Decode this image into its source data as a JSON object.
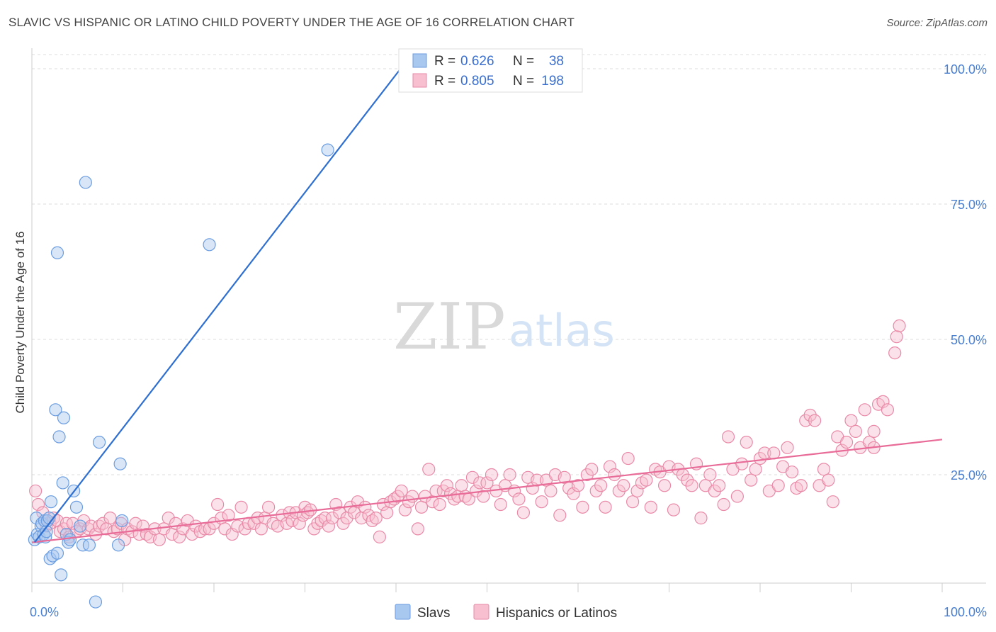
{
  "title": "SLAVIC VS HISPANIC OR LATINO CHILD POVERTY UNDER THE AGE OF 16 CORRELATION CHART",
  "source": "Source: ZipAtlas.com",
  "watermark": {
    "zip": "ZIP",
    "atlas": "atlas"
  },
  "legend": {
    "r_label": "R =",
    "n_label": "N =",
    "entries": [
      {
        "r": "0.626",
        "n": "38",
        "color": "#a9c8f0",
        "stroke": "#6b9de0"
      },
      {
        "r": "0.805",
        "n": "198",
        "color": "#f7bfd0",
        "stroke": "#e98aa8"
      }
    ]
  },
  "colors": {
    "slavs": "#a9c8f0",
    "slavs_stroke": "#6b9de0",
    "slavs_line": "#2f6fd0",
    "hisp": "#f7bfd0",
    "hisp_stroke": "#e98aa8",
    "hisp_line": "#e86b98",
    "tick": "#4a7fcf",
    "grid": "#dddddd"
  },
  "chart_data": {
    "type": "scatter",
    "title": "SLAVIC VS HISPANIC OR LATINO CHILD POVERTY UNDER THE AGE OF 16 CORRELATION CHART",
    "xlabel": "",
    "ylabel": "Child Poverty Under the Age of 16",
    "xlim": [
      0,
      100
    ],
    "ylim": [
      0,
      102
    ],
    "x_ticks": [
      "0.0%",
      "100.0%"
    ],
    "y_ticks": [
      {
        "v": 25,
        "label": "25.0%"
      },
      {
        "v": 50,
        "label": "50.0%"
      },
      {
        "v": 75,
        "label": "75.0%"
      },
      {
        "v": 100,
        "label": "100.0%"
      }
    ],
    "grid": "horizontal dashed",
    "legend_placement": "top-center",
    "series": [
      {
        "name": "Slavs",
        "r": 0.626,
        "n": 38,
        "trend": {
          "x": [
            0.3,
            40.5
          ],
          "y": [
            12.5,
            100
          ]
        },
        "points": [
          [
            0.3,
            13
          ],
          [
            0.5,
            17
          ],
          [
            0.6,
            14
          ],
          [
            0.8,
            13.5
          ],
          [
            1.0,
            15.5
          ],
          [
            1.1,
            16
          ],
          [
            1.3,
            14
          ],
          [
            1.4,
            16.5
          ],
          [
            1.5,
            13.5
          ],
          [
            1.6,
            14.5
          ],
          [
            1.7,
            16.5
          ],
          [
            1.9,
            17
          ],
          [
            2.0,
            9.5
          ],
          [
            2.1,
            20
          ],
          [
            2.3,
            10
          ],
          [
            2.6,
            37
          ],
          [
            2.8,
            10.5
          ],
          [
            3.0,
            32
          ],
          [
            3.2,
            6.5
          ],
          [
            3.4,
            23.5
          ],
          [
            3.5,
            35.5
          ],
          [
            3.8,
            14
          ],
          [
            4.0,
            12.5
          ],
          [
            4.2,
            13
          ],
          [
            4.6,
            22
          ],
          [
            4.9,
            19
          ],
          [
            5.3,
            15.5
          ],
          [
            5.6,
            12
          ],
          [
            5.9,
            79
          ],
          [
            6.3,
            12
          ],
          [
            7.0,
            1.5
          ],
          [
            7.4,
            31
          ],
          [
            9.5,
            12
          ],
          [
            9.7,
            27
          ],
          [
            9.9,
            16.5
          ],
          [
            19.5,
            67.5
          ],
          [
            2.8,
            66
          ],
          [
            32.5,
            85
          ]
        ]
      },
      {
        "name": "Hispanics or Latinos",
        "r": 0.805,
        "n": 198,
        "trend": {
          "x": [
            0,
            100
          ],
          "y": [
            12.5,
            31.5
          ]
        },
        "points": [
          [
            0.4,
            22
          ],
          [
            0.7,
            19.5
          ],
          [
            1.2,
            18
          ],
          [
            1.6,
            15.5
          ],
          [
            2.0,
            16
          ],
          [
            2.4,
            17
          ],
          [
            2.8,
            16.5
          ],
          [
            3.1,
            14.5
          ],
          [
            3.5,
            15
          ],
          [
            3.8,
            16
          ],
          [
            4.1,
            13.5
          ],
          [
            4.5,
            16
          ],
          [
            4.9,
            14.5
          ],
          [
            5.3,
            15
          ],
          [
            5.7,
            16.5
          ],
          [
            6.2,
            15
          ],
          [
            6.5,
            15.5
          ],
          [
            7.0,
            14
          ],
          [
            7.4,
            15.5
          ],
          [
            7.8,
            16
          ],
          [
            8.2,
            15
          ],
          [
            8.6,
            17
          ],
          [
            9.0,
            14.5
          ],
          [
            9.4,
            15
          ],
          [
            9.8,
            16
          ],
          [
            10.2,
            13
          ],
          [
            10.5,
            15
          ],
          [
            11,
            14.5
          ],
          [
            11.4,
            16
          ],
          [
            11.8,
            14
          ],
          [
            12.2,
            15.5
          ],
          [
            12.6,
            14
          ],
          [
            13,
            13.5
          ],
          [
            13.5,
            15
          ],
          [
            14,
            13
          ],
          [
            14.5,
            15
          ],
          [
            15,
            17
          ],
          [
            15.4,
            14
          ],
          [
            15.8,
            16
          ],
          [
            16.2,
            13.5
          ],
          [
            16.6,
            15
          ],
          [
            17.1,
            16.5
          ],
          [
            17.6,
            14
          ],
          [
            18,
            15.5
          ],
          [
            18.5,
            14.5
          ],
          [
            19,
            15
          ],
          [
            19.5,
            15
          ],
          [
            20,
            16
          ],
          [
            20.4,
            19.5
          ],
          [
            20.8,
            17
          ],
          [
            21.2,
            15
          ],
          [
            21.6,
            17.5
          ],
          [
            22,
            14
          ],
          [
            22.6,
            15.5
          ],
          [
            23,
            19
          ],
          [
            23.4,
            15
          ],
          [
            23.8,
            16
          ],
          [
            24.4,
            16
          ],
          [
            24.8,
            17
          ],
          [
            25.2,
            15
          ],
          [
            25.6,
            17
          ],
          [
            26,
            19
          ],
          [
            26.5,
            16
          ],
          [
            27,
            15.5
          ],
          [
            27.5,
            17.5
          ],
          [
            28,
            16
          ],
          [
            28.3,
            18
          ],
          [
            28.6,
            16.5
          ],
          [
            29,
            18
          ],
          [
            29.4,
            16
          ],
          [
            29.8,
            17.5
          ],
          [
            30,
            19
          ],
          [
            30.3,
            18
          ],
          [
            30.6,
            18.5
          ],
          [
            31,
            15
          ],
          [
            31.4,
            16
          ],
          [
            31.8,
            16.5
          ],
          [
            32.2,
            17
          ],
          [
            32.6,
            15.5
          ],
          [
            33,
            17
          ],
          [
            33.4,
            19.5
          ],
          [
            33.8,
            18
          ],
          [
            34.2,
            16
          ],
          [
            34.6,
            17
          ],
          [
            35,
            19
          ],
          [
            35.4,
            18
          ],
          [
            35.8,
            20
          ],
          [
            36.2,
            17
          ],
          [
            36.6,
            19
          ],
          [
            37,
            17.5
          ],
          [
            37.4,
            16.5
          ],
          [
            37.8,
            17
          ],
          [
            38.2,
            13.5
          ],
          [
            38.6,
            19.5
          ],
          [
            39,
            18
          ],
          [
            39.4,
            20
          ],
          [
            39.8,
            20.5
          ],
          [
            40.2,
            21
          ],
          [
            40.6,
            22
          ],
          [
            41,
            18.5
          ],
          [
            41.4,
            20
          ],
          [
            41.8,
            21
          ],
          [
            42.4,
            15
          ],
          [
            42.8,
            19
          ],
          [
            43.2,
            21
          ],
          [
            43.6,
            26
          ],
          [
            44,
            20
          ],
          [
            44.4,
            22
          ],
          [
            44.8,
            19.5
          ],
          [
            45.2,
            22
          ],
          [
            45.6,
            23
          ],
          [
            46,
            21.5
          ],
          [
            46.4,
            20.5
          ],
          [
            46.8,
            21
          ],
          [
            47.2,
            23
          ],
          [
            47.6,
            21
          ],
          [
            48,
            20.5
          ],
          [
            48.4,
            24.5
          ],
          [
            48.8,
            22
          ],
          [
            49.2,
            23.5
          ],
          [
            49.6,
            21
          ],
          [
            50,
            23.5
          ],
          [
            50.5,
            25
          ],
          [
            51,
            22
          ],
          [
            51.5,
            19.5
          ],
          [
            52,
            23
          ],
          [
            52.5,
            25
          ],
          [
            53,
            22
          ],
          [
            53.5,
            20.5
          ],
          [
            54,
            18
          ],
          [
            54.5,
            24.5
          ],
          [
            55,
            22.5
          ],
          [
            55.5,
            24
          ],
          [
            56,
            20
          ],
          [
            56.5,
            24
          ],
          [
            57,
            22
          ],
          [
            57.5,
            25
          ],
          [
            58,
            17.5
          ],
          [
            58.5,
            24.5
          ],
          [
            59,
            22.5
          ],
          [
            59.5,
            21.5
          ],
          [
            60,
            23
          ],
          [
            60.5,
            19
          ],
          [
            61,
            25
          ],
          [
            61.5,
            26
          ],
          [
            62,
            22
          ],
          [
            62.5,
            23
          ],
          [
            63,
            19
          ],
          [
            63.5,
            26.5
          ],
          [
            64,
            25
          ],
          [
            64.5,
            22
          ],
          [
            65,
            23
          ],
          [
            65.5,
            28
          ],
          [
            66,
            20
          ],
          [
            66.5,
            22
          ],
          [
            67,
            23.5
          ],
          [
            67.5,
            24
          ],
          [
            68,
            19
          ],
          [
            68.5,
            26
          ],
          [
            69,
            25.5
          ],
          [
            69.5,
            23
          ],
          [
            70,
            26.5
          ],
          [
            70.5,
            18.5
          ],
          [
            71,
            26
          ],
          [
            71.5,
            25
          ],
          [
            72,
            24
          ],
          [
            72.5,
            23
          ],
          [
            73,
            27
          ],
          [
            73.5,
            17
          ],
          [
            74,
            23
          ],
          [
            74.5,
            25
          ],
          [
            75,
            22
          ],
          [
            75.5,
            23
          ],
          [
            76,
            19.5
          ],
          [
            76.5,
            32
          ],
          [
            77,
            26
          ],
          [
            77.5,
            21
          ],
          [
            78,
            27
          ],
          [
            78.5,
            31
          ],
          [
            79,
            24
          ],
          [
            79.5,
            26
          ],
          [
            80,
            28
          ],
          [
            80.5,
            29
          ],
          [
            81,
            22
          ],
          [
            81.5,
            29
          ],
          [
            82,
            23
          ],
          [
            82.5,
            26.5
          ],
          [
            83,
            30
          ],
          [
            83.5,
            25.5
          ],
          [
            84,
            22.5
          ],
          [
            84.5,
            23
          ],
          [
            85,
            35
          ],
          [
            85.5,
            36
          ],
          [
            86,
            35
          ],
          [
            86.5,
            23
          ],
          [
            87,
            26
          ],
          [
            87.5,
            24
          ],
          [
            88,
            20
          ],
          [
            88.5,
            32
          ],
          [
            89,
            29.5
          ],
          [
            89.5,
            31
          ],
          [
            90,
            35
          ],
          [
            90.5,
            33
          ],
          [
            91,
            30
          ],
          [
            91.5,
            37
          ],
          [
            92,
            31
          ],
          [
            92.5,
            33
          ],
          [
            93,
            38
          ],
          [
            93.5,
            38.5
          ],
          [
            94,
            37
          ],
          [
            95,
            50.5
          ],
          [
            95.3,
            52.5
          ],
          [
            94.8,
            47.5
          ],
          [
            92.5,
            30
          ]
        ]
      }
    ]
  },
  "bottom_legend": [
    {
      "label": "Slavs"
    },
    {
      "label": "Hispanics or Latinos"
    }
  ]
}
